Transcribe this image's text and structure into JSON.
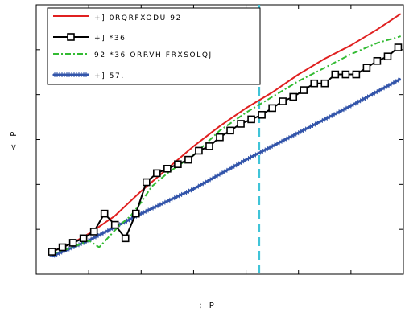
{
  "chart_data": {
    "type": "line",
    "xlabel": "; P",
    "ylabel": "< P",
    "xlim": [
      0,
      7
    ],
    "ylim": [
      0,
      6
    ],
    "x_ticks": [],
    "y_ticks": [],
    "grid": false,
    "legend_position": "top-left",
    "vertical_marker_x": 4.25,
    "series": [
      {
        "name": "+]  0RQRFXODU 92",
        "color": "#e02020",
        "style": "solid",
        "marker": "none",
        "x": [
          0.3,
          0.7,
          1.0,
          1.5,
          2.0,
          2.5,
          3.0,
          3.5,
          4.0,
          4.5,
          5.0,
          5.5,
          6.0,
          6.5,
          6.95
        ],
        "y": [
          0.5,
          0.7,
          0.9,
          1.3,
          1.85,
          2.35,
          2.85,
          3.3,
          3.7,
          4.05,
          4.45,
          4.8,
          5.1,
          5.45,
          5.8
        ]
      },
      {
        "name": "+]  *36",
        "color": "#000000",
        "style": "solid",
        "marker": "square",
        "x": [
          0.3,
          0.5,
          0.7,
          0.9,
          1.1,
          1.3,
          1.5,
          1.7,
          1.9,
          2.1,
          2.3,
          2.5,
          2.7,
          2.9,
          3.1,
          3.3,
          3.5,
          3.7,
          3.9,
          4.1,
          4.3,
          4.5,
          4.7,
          4.9,
          5.1,
          5.3,
          5.5,
          5.7,
          5.9,
          6.1,
          6.3,
          6.5,
          6.7,
          6.9
        ],
        "y": [
          0.5,
          0.6,
          0.7,
          0.8,
          0.95,
          1.35,
          1.1,
          0.8,
          1.35,
          2.05,
          2.25,
          2.35,
          2.45,
          2.55,
          2.75,
          2.85,
          3.05,
          3.2,
          3.35,
          3.45,
          3.55,
          3.7,
          3.85,
          3.95,
          4.1,
          4.25,
          4.25,
          4.45,
          4.45,
          4.45,
          4.6,
          4.75,
          4.85,
          5.05
        ]
      },
      {
        "name": "92 *36 ORRVH FRXSOLQJ",
        "color": "#33bb33",
        "style": "dashdot",
        "marker": "none",
        "x": [
          0.3,
          0.7,
          1.0,
          1.2,
          1.4,
          1.6,
          1.8,
          2.0,
          2.2,
          2.5,
          3.0,
          3.5,
          4.0,
          4.5,
          5.0,
          5.5,
          6.0,
          6.5,
          6.95
        ],
        "y": [
          0.45,
          0.6,
          0.75,
          0.6,
          0.85,
          1.1,
          1.3,
          1.6,
          1.95,
          2.25,
          2.65,
          3.2,
          3.6,
          3.95,
          4.3,
          4.6,
          4.9,
          5.15,
          5.3
        ]
      },
      {
        "name": "+]  57.",
        "color": "#3355aa",
        "style": "solid",
        "marker": "plus",
        "x": [
          0.3,
          1.0,
          2.0,
          3.0,
          4.0,
          5.0,
          6.0,
          6.95
        ],
        "y": [
          0.4,
          0.75,
          1.35,
          1.9,
          2.55,
          3.15,
          3.75,
          4.35
        ]
      }
    ]
  }
}
